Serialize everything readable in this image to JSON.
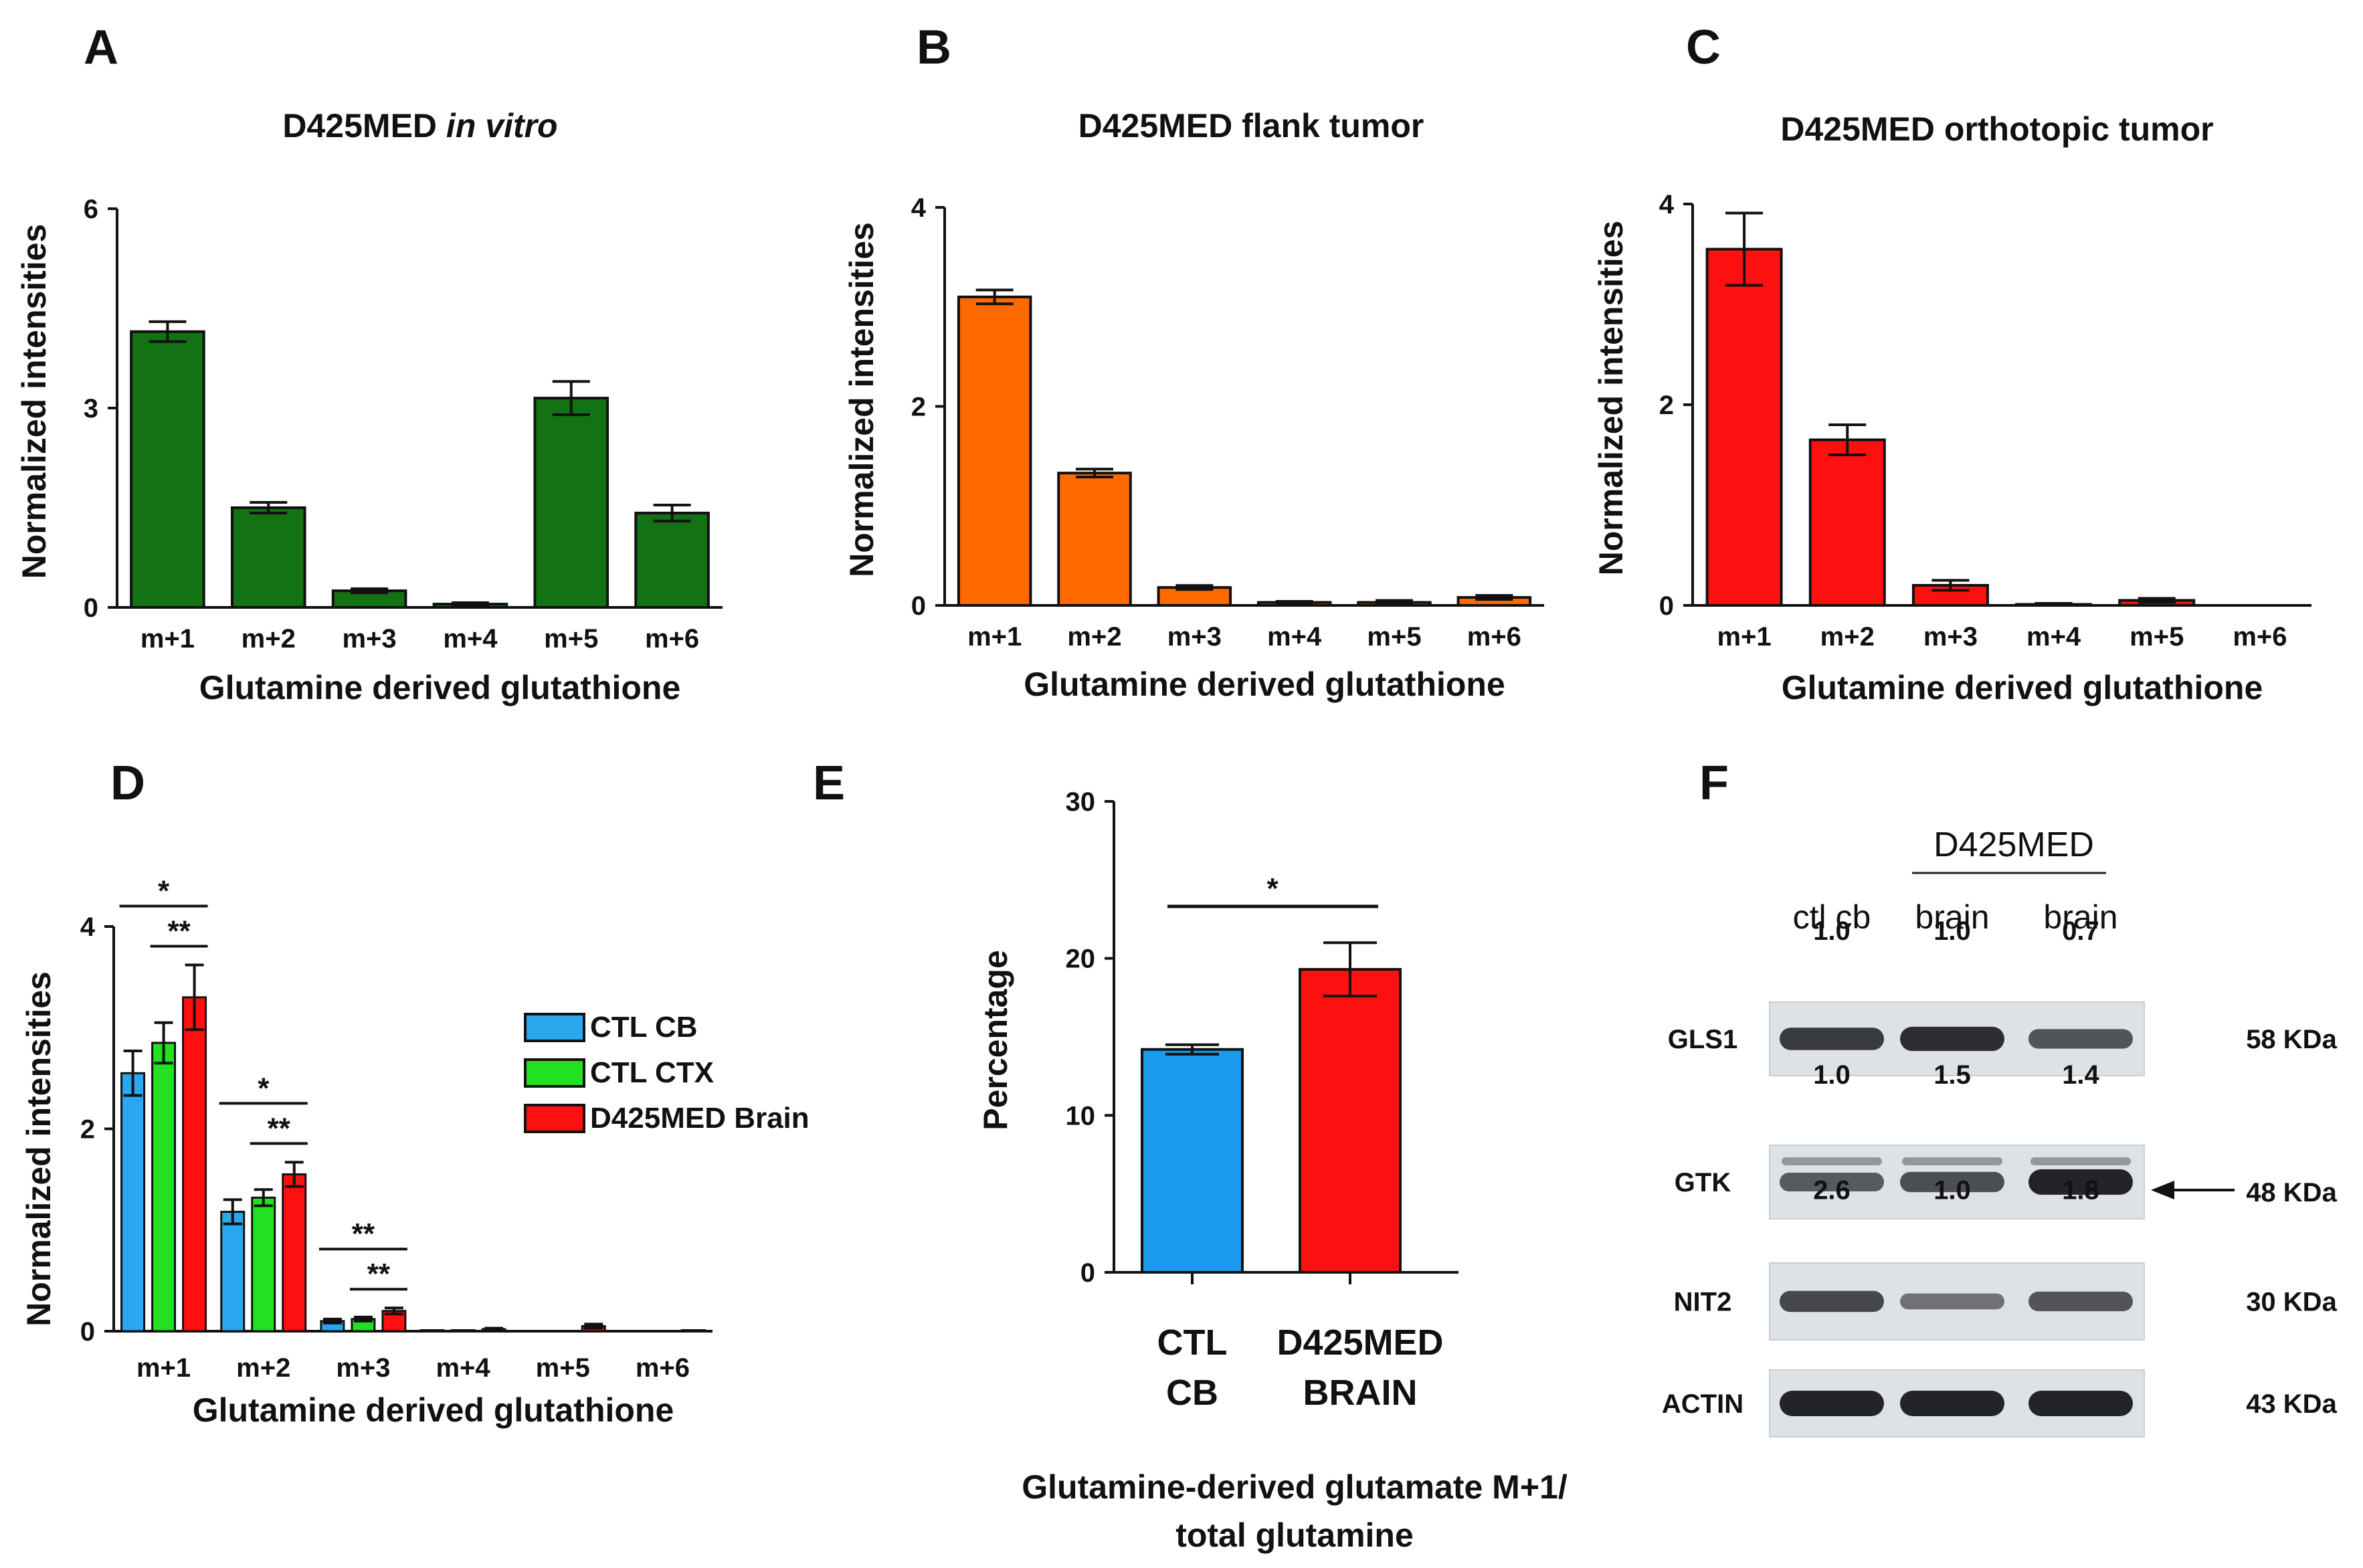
{
  "panel_letters": [
    "A",
    "B",
    "C",
    "D",
    "E",
    "F"
  ],
  "chart_data": [
    {
      "id": "A",
      "type": "bar",
      "title_main": "D425MED ",
      "title_italic": "in vitro",
      "xlabel": "Glutamine derived glutathione",
      "ylabel": "Normalized intensities",
      "categories": [
        "m+1",
        "m+2",
        "m+3",
        "m+4",
        "m+5",
        "m+6"
      ],
      "values": [
        4.15,
        1.5,
        0.25,
        0.05,
        3.15,
        1.42
      ],
      "errors": [
        0.15,
        0.08,
        0.03,
        0.02,
        0.25,
        0.12
      ],
      "ylim": [
        0,
        6
      ],
      "yticks": [
        0,
        3,
        6
      ],
      "color": "#137213"
    },
    {
      "id": "B",
      "type": "bar",
      "title_main": "D425MED flank tumor",
      "xlabel": "Glutamine derived glutathione",
      "ylabel": "Normalized intensities",
      "categories": [
        "m+1",
        "m+2",
        "m+3",
        "m+4",
        "m+5",
        "m+6"
      ],
      "values": [
        3.1,
        1.33,
        0.18,
        0.03,
        0.03,
        0.08
      ],
      "errors": [
        0.07,
        0.04,
        0.02,
        0.01,
        0.02,
        0.02
      ],
      "ylim": [
        0,
        4
      ],
      "yticks": [
        0,
        2,
        4
      ],
      "color": "#ff6a00"
    },
    {
      "id": "C",
      "type": "bar",
      "title_main": "D425MED orthotopic tumor",
      "xlabel": "Glutamine derived glutathione",
      "ylabel": "Normalized intensities",
      "categories": [
        "m+1",
        "m+2",
        "m+3",
        "m+4",
        "m+5",
        "m+6"
      ],
      "values": [
        3.55,
        1.65,
        0.2,
        0.01,
        0.05,
        0.0
      ],
      "errors": [
        0.36,
        0.15,
        0.05,
        0.01,
        0.02,
        0.0
      ],
      "ylim": [
        0,
        4
      ],
      "yticks": [
        0,
        2,
        4
      ],
      "color": "#ff1010"
    },
    {
      "id": "D",
      "type": "bar",
      "xlabel": "Glutamine derived glutathione",
      "ylabel": "Normalized intensities",
      "categories": [
        "m+1",
        "m+2",
        "m+3",
        "m+4",
        "m+5",
        "m+6"
      ],
      "series": [
        {
          "name": "CTL CB",
          "color": "#2aa7ef",
          "values": [
            2.55,
            1.18,
            0.1,
            0.01,
            0.0,
            0.0
          ],
          "errors": [
            0.22,
            0.12,
            0.02,
            0.0,
            0.0,
            0.0
          ]
        },
        {
          "name": "CTL CTX",
          "color": "#22e022",
          "values": [
            2.85,
            1.32,
            0.12,
            0.01,
            0.0,
            0.0
          ],
          "errors": [
            0.2,
            0.08,
            0.02,
            0.0,
            0.0,
            0.0
          ]
        },
        {
          "name": "D425MED Brain",
          "color": "#ff1010",
          "values": [
            3.3,
            1.55,
            0.2,
            0.02,
            0.05,
            0.01
          ],
          "errors": [
            0.32,
            0.12,
            0.03,
            0.01,
            0.02,
            0.0
          ]
        }
      ],
      "ylim": [
        0,
        4
      ],
      "yticks": [
        0,
        2,
        4
      ],
      "significance": [
        {
          "group": 0,
          "from": 0,
          "to": 2,
          "label": "*"
        },
        {
          "group": 0,
          "from": 1,
          "to": 2,
          "label": "**"
        },
        {
          "group": 1,
          "from": 0,
          "to": 2,
          "label": "*"
        },
        {
          "group": 1,
          "from": 1,
          "to": 2,
          "label": "**"
        },
        {
          "group": 2,
          "from": 0,
          "to": 2,
          "label": "**"
        },
        {
          "group": 2,
          "from": 1,
          "to": 2,
          "label": "**"
        }
      ],
      "legend_position": "right"
    },
    {
      "id": "E",
      "type": "bar",
      "ylabel": "Percentage",
      "caption": [
        "Glutamine-derived glutamate M+1/",
        "total glutamine"
      ],
      "categories": [
        [
          "CTL",
          "CB"
        ],
        [
          "D425MED",
          "BRAIN"
        ]
      ],
      "values": [
        14.2,
        19.3
      ],
      "errors": [
        0.3,
        1.7
      ],
      "colors": [
        "#1a9bef",
        "#ff1010"
      ],
      "ylim": [
        0,
        30
      ],
      "yticks": [
        0,
        10,
        20,
        30
      ],
      "significance": {
        "label": "*"
      }
    }
  ],
  "western_blot": {
    "group_label": "D425MED",
    "lanes": [
      "ctl cb",
      "brain",
      "brain"
    ],
    "rows": [
      {
        "label": "GLS1",
        "kda": "58 KDa",
        "values": [
          "1.0",
          "1.0",
          "0.7"
        ],
        "intensity": [
          0.8,
          0.92,
          0.6
        ],
        "arrow": false
      },
      {
        "label": "GTK",
        "kda": "48 KDa",
        "values": [
          "1.0",
          "1.5",
          "1.4"
        ],
        "intensity": [
          0.55,
          0.65,
          1.0
        ],
        "arrow": true
      },
      {
        "label": "NIT2",
        "kda": "30 KDa",
        "values": [
          "2.6",
          "1.0",
          "1.8"
        ],
        "intensity": [
          0.7,
          0.35,
          0.6
        ],
        "arrow": false
      },
      {
        "label": "ACTIN",
        "kda": "43 KDa",
        "values": null,
        "intensity": [
          1.0,
          1.0,
          1.0
        ],
        "arrow": false
      }
    ]
  }
}
